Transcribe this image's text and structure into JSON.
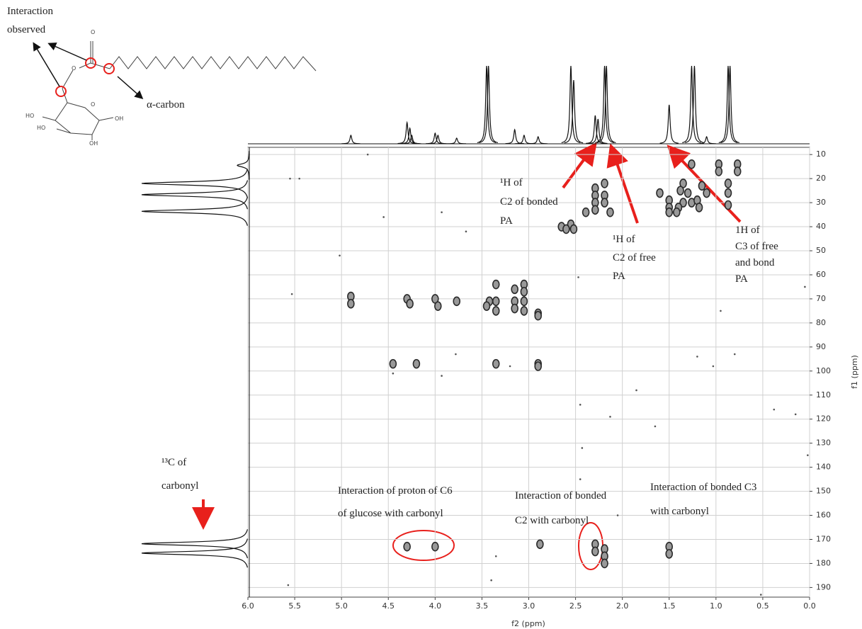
{
  "chart_data": {
    "type": "hmbc",
    "x_label": "f2 (ppm)",
    "y_label": "f1 (ppm)",
    "xlim": [
      6,
      0
    ],
    "ylim": [
      7,
      194
    ],
    "xticks": [
      {
        "value": 6,
        "label": "6.0"
      },
      5.5,
      {
        "value": 5,
        "label": "5.0"
      },
      4.5,
      {
        "value": 4,
        "label": "4.0"
      },
      3.5,
      {
        "value": 3,
        "label": "3.0"
      },
      2.5,
      {
        "value": 2,
        "label": "2.0"
      },
      1.5,
      {
        "value": 1,
        "label": "1.0"
      },
      0.5,
      {
        "value": 0,
        "label": "0.0"
      }
    ],
    "yticks": [
      10,
      20,
      30,
      40,
      50,
      60,
      70,
      80,
      90,
      100,
      110,
      120,
      130,
      140,
      150,
      160,
      170,
      180,
      190
    ],
    "grid": true,
    "series": [
      {
        "color": "#2a2a2a",
        "x": [
          0.97,
          0.97,
          0.77,
          0.77,
          0.87,
          0.87,
          0.87,
          1.26,
          1.35,
          1.38,
          1.3,
          1.26,
          1.2,
          1.18,
          1.35,
          1.4,
          1.42,
          1.15,
          1.1,
          1.5,
          1.5,
          1.5,
          1.6,
          2.29,
          2.29,
          2.29,
          2.29,
          2.19,
          2.19,
          2.19,
          2.13,
          2.39,
          2.55,
          2.52,
          2.65,
          2.6,
          4.9,
          4.9,
          4.3,
          4.27,
          4.0,
          3.97,
          3.77,
          3.42,
          3.45,
          3.35,
          3.35,
          3.35,
          3.15,
          3.15,
          3.15,
          3.05,
          3.05,
          3.05,
          3.05,
          2.9,
          2.9,
          4.45,
          4.2,
          3.35,
          2.9,
          2.9,
          4.3,
          4.0,
          2.29,
          2.29,
          2.19,
          2.19,
          2.19,
          1.5,
          1.5,
          2.88
        ],
        "values": [
          14,
          17,
          14,
          17,
          22,
          26,
          31,
          14,
          22,
          25,
          26,
          30,
          29,
          32,
          30,
          32,
          34,
          23,
          26,
          29,
          32,
          34,
          26,
          24,
          27,
          30,
          33,
          22,
          27,
          30,
          34,
          34,
          39,
          41,
          40,
          41,
          69,
          72,
          70,
          72,
          70,
          73,
          71,
          71,
          73,
          64,
          71,
          75,
          66,
          71,
          74,
          64,
          67,
          71,
          75,
          76,
          77,
          97,
          97,
          97,
          97,
          98,
          173,
          173,
          172,
          175,
          174,
          177,
          180,
          173,
          176,
          172
        ]
      },
      {
        "color": "#555555",
        "x": [
          4.72,
          5.55,
          5.45,
          4.55,
          3.93,
          3.67,
          5.02,
          5.53,
          2.47,
          0.95,
          0.05,
          1.2,
          0.8,
          1.03,
          3.78,
          3.93,
          4.45,
          3.2,
          1.85,
          2.45,
          2.13,
          1.65,
          2.43,
          2.45,
          0.38,
          0.15,
          0.02,
          3.35,
          3.4,
          5.57,
          0.52,
          2.05
        ],
        "values": [
          10,
          20,
          20,
          36,
          34,
          42,
          52,
          68,
          61,
          75,
          65,
          94,
          93,
          98,
          93,
          102,
          101,
          98,
          108,
          114,
          119,
          123,
          132,
          145,
          116,
          118,
          135,
          177,
          187,
          189,
          193,
          160
        ]
      }
    ],
    "f2_projection": {
      "x": [
        4.9,
        4.3,
        4.27,
        4.25,
        4.0,
        3.97,
        3.77,
        3.45,
        3.43,
        3.15,
        3.05,
        2.9,
        2.55,
        2.52,
        2.29,
        2.26,
        2.19,
        2.17,
        1.5,
        1.26,
        1.23,
        1.1,
        0.87,
        0.85
      ],
      "values": [
        12,
        30,
        22,
        12,
        15,
        12,
        8,
        110,
        110,
        20,
        12,
        10,
        110,
        90,
        40,
        35,
        110,
        110,
        55,
        110,
        110,
        10,
        110,
        110
      ]
    },
    "f1_projection": {
      "y": [
        14.5,
        22,
        26.7,
        33.6,
        171.8,
        175.7
      ],
      "values": [
        17,
        152,
        152,
        152,
        152,
        152
      ]
    },
    "annotations": [
      {
        "lines": [
          "¹H of",
          "C2 of bonded",
          "PA"
        ]
      },
      {
        "lines": [
          "¹H of",
          "C2 of free",
          "PA"
        ]
      },
      {
        "lines": [
          "1H of",
          "C3 of free",
          "and bond",
          "PA"
        ]
      },
      {
        "lines": [
          "¹³C of",
          "carbonyl"
        ]
      },
      {
        "lines": [
          "Interaction of proton of C6",
          "of glucose  with carbonyl"
        ]
      },
      {
        "lines": [
          "Interaction of bonded",
          "C2  with carbonyl"
        ]
      },
      {
        "lines": [
          "Interaction of bonded C3",
          "with carbonyl"
        ]
      },
      {
        "lines": [
          "Interaction",
          "observed"
        ]
      },
      {
        "lines": [
          "α-carbon"
        ]
      }
    ],
    "structure_labels": [
      "O",
      "O",
      "O",
      "HO",
      "HO",
      "OH",
      "OH"
    ]
  }
}
